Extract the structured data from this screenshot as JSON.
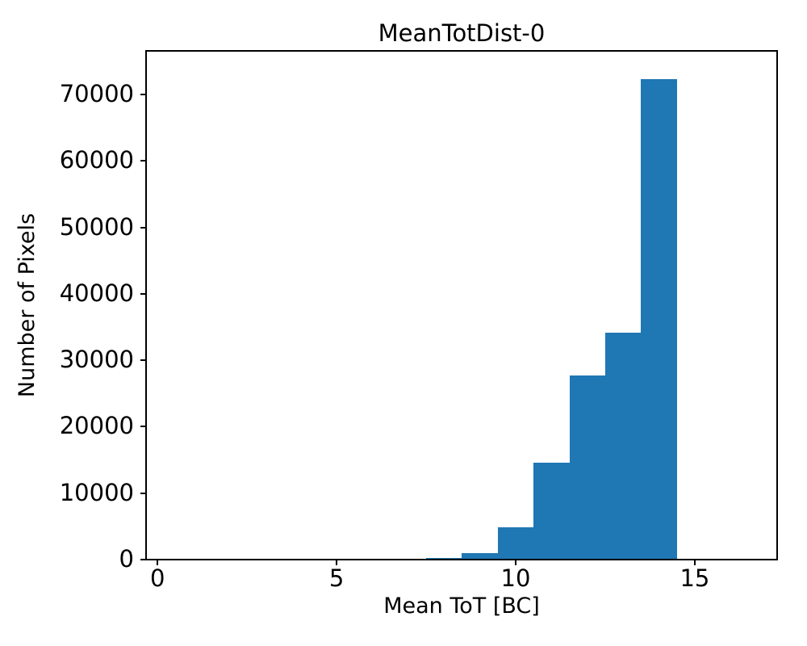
{
  "chart_data": {
    "type": "bar",
    "subtype": "histogram",
    "title": "MeanTotDist-0",
    "xlabel": "Mean ToT [BC]",
    "ylabel": "Number of Pixels",
    "bin_edges": [
      7.5,
      8.5,
      9.5,
      10.5,
      11.5,
      12.5,
      13.5,
      14.5
    ],
    "counts": [
      200,
      950,
      4850,
      14600,
      27700,
      34200,
      72300
    ],
    "xticks": [
      0,
      5,
      10,
      15
    ],
    "yticks": [
      0,
      10000,
      20000,
      30000,
      40000,
      50000,
      60000,
      70000
    ],
    "xlim": [
      -0.32,
      17.3
    ],
    "ylim": [
      0,
      76560
    ],
    "bar_color": "#1f77b4",
    "axis_color": "#000000",
    "background_color": "#ffffff",
    "grid": false,
    "legend": "none"
  }
}
